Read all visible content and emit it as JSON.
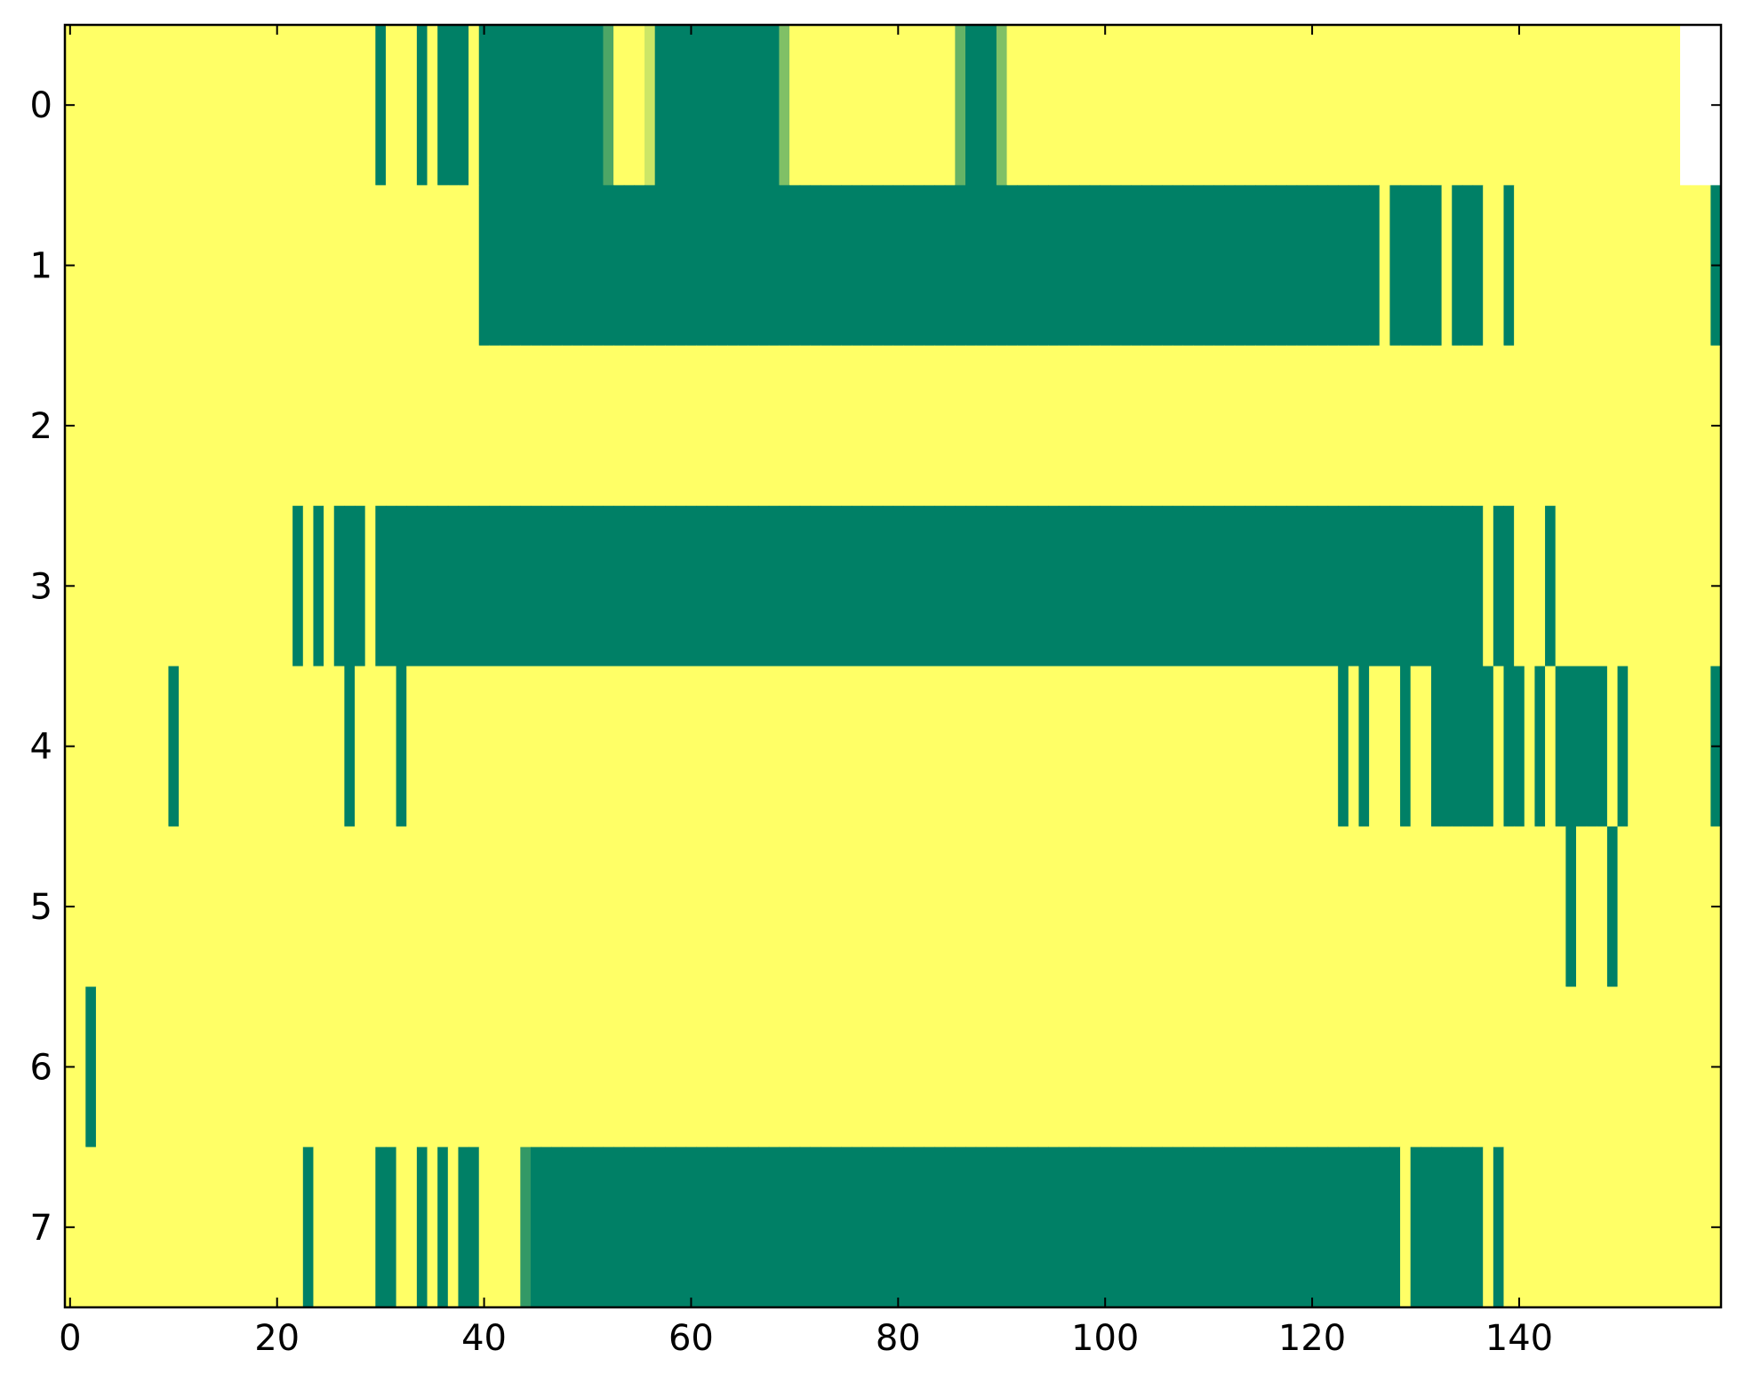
{
  "chart_data": {
    "type": "heatmap",
    "cmap": [
      "#008066",
      "#ffff66"
    ],
    "xlim": [
      -0.5,
      159.5
    ],
    "ylim": [
      7.5,
      -0.5
    ],
    "xticks": [
      0,
      20,
      40,
      60,
      80,
      100,
      120,
      140
    ],
    "yticks": [
      0,
      1,
      2,
      3,
      4,
      5,
      6,
      7
    ],
    "values": [
      [
        1,
        1,
        1,
        1,
        1,
        1,
        1,
        1,
        1,
        1,
        1,
        1,
        1,
        1,
        1,
        1,
        1,
        1,
        1,
        1,
        1,
        1,
        1,
        1,
        1,
        1,
        1,
        1,
        1,
        1,
        0,
        1,
        1,
        1,
        0,
        1,
        0,
        0,
        0,
        1,
        0,
        0,
        0,
        0,
        0,
        0,
        0,
        0,
        0,
        0,
        0,
        0,
        0.3,
        1,
        1,
        1,
        0.8,
        0,
        0,
        0,
        0,
        0,
        0,
        0,
        0,
        0,
        0,
        0,
        0,
        0.5,
        1,
        1,
        1,
        1,
        1,
        1,
        1,
        1,
        1,
        1,
        1,
        1,
        1,
        1,
        1,
        1,
        0.4,
        0,
        0,
        0,
        0.5,
        1,
        1,
        1,
        1,
        1,
        1,
        1,
        1,
        1,
        1,
        1,
        1,
        1,
        1,
        1,
        1,
        1,
        1,
        1,
        1,
        1,
        1,
        1,
        1,
        1,
        1,
        1,
        1,
        1,
        1,
        1,
        1,
        1,
        1,
        1,
        1,
        1,
        1,
        1,
        1,
        1,
        1,
        1,
        1,
        1,
        1,
        1,
        1,
        1,
        1,
        1,
        1,
        1,
        1,
        1,
        1,
        1,
        1,
        1,
        1,
        1,
        1,
        1,
        1,
        1
      ],
      [
        1,
        1,
        1,
        1,
        1,
        1,
        1,
        1,
        1,
        1,
        1,
        1,
        1,
        1,
        1,
        1,
        1,
        1,
        1,
        1,
        1,
        1,
        1,
        1,
        1,
        1,
        1,
        1,
        1,
        1,
        1,
        1,
        1,
        1,
        1,
        1,
        1,
        1,
        1,
        1,
        0,
        0,
        0,
        0,
        0,
        0,
        0,
        0,
        0,
        0,
        0,
        0,
        0,
        0,
        0,
        0,
        0,
        0,
        0,
        0,
        0,
        0,
        0,
        0,
        0,
        0,
        0,
        0,
        0,
        0,
        0,
        0,
        0,
        0,
        0,
        0,
        0,
        0,
        0,
        0,
        0,
        0,
        0,
        0,
        0,
        0,
        0,
        0,
        0,
        0,
        0,
        0,
        0,
        0,
        0,
        0,
        0,
        0,
        0,
        0,
        0,
        0,
        0,
        0,
        0,
        0,
        0,
        0,
        0,
        0,
        0,
        0,
        0,
        0,
        0,
        0,
        0,
        0,
        0,
        0,
        0,
        0,
        0,
        0,
        0,
        0,
        0,
        1,
        0,
        0,
        0,
        0,
        0,
        1,
        0,
        0,
        0,
        1,
        1,
        0,
        1,
        1,
        1,
        1,
        1,
        1,
        1,
        1,
        1,
        1,
        1,
        1,
        1,
        1,
        1,
        1,
        1,
        1,
        1,
        0
      ],
      [
        1,
        1,
        1,
        1,
        1,
        1,
        1,
        1,
        1,
        1,
        1,
        1,
        1,
        1,
        1,
        1,
        1,
        1,
        1,
        1,
        1,
        1,
        1,
        1,
        1,
        1,
        1,
        1,
        1,
        1,
        1,
        1,
        1,
        1,
        1,
        1,
        1,
        1,
        1,
        1,
        1,
        1,
        1,
        1,
        1,
        1,
        1,
        1,
        1,
        1,
        1,
        1,
        1,
        1,
        1,
        1,
        1,
        1,
        1,
        1,
        1,
        1,
        1,
        1,
        1,
        1,
        1,
        1,
        1,
        1,
        1,
        1,
        1,
        1,
        1,
        1,
        1,
        1,
        1,
        1,
        1,
        1,
        1,
        1,
        1,
        1,
        1,
        1,
        1,
        1,
        1,
        1,
        1,
        1,
        1,
        1,
        1,
        1,
        1,
        1,
        1,
        1,
        1,
        1,
        1,
        1,
        1,
        1,
        1,
        1,
        1,
        1,
        1,
        1,
        1,
        1,
        1,
        1,
        1,
        1,
        1,
        1,
        1,
        1,
        1,
        1,
        1,
        1,
        1,
        1,
        1,
        1,
        1,
        1,
        1,
        1,
        1,
        1,
        1,
        1,
        1,
        1,
        1,
        1,
        1,
        1,
        1,
        1,
        1,
        1,
        1,
        1,
        1,
        1,
        1,
        1,
        1,
        1,
        1,
        1
      ],
      [
        1,
        1,
        1,
        1,
        1,
        1,
        1,
        1,
        1,
        1,
        1,
        1,
        1,
        1,
        1,
        1,
        1,
        1,
        1,
        1,
        1,
        1,
        0,
        1,
        0,
        1,
        0,
        0,
        0,
        1,
        0,
        0,
        0,
        0,
        0,
        0,
        0,
        0,
        0,
        0,
        0,
        0,
        0,
        0,
        0,
        0,
        0,
        0,
        0,
        0,
        0,
        0,
        0,
        0,
        0,
        0,
        0,
        0,
        0,
        0,
        0,
        0,
        0,
        0,
        0,
        0,
        0,
        0,
        0,
        0,
        0,
        0,
        0,
        0,
        0,
        0,
        0,
        0,
        0,
        0,
        0,
        0,
        0,
        0,
        0,
        0,
        0,
        0,
        0,
        0,
        0,
        0,
        0,
        0,
        0,
        0,
        0,
        0,
        0,
        0,
        0,
        0,
        0,
        0,
        0,
        0,
        0,
        0,
        0,
        0,
        0,
        0,
        0,
        0,
        0,
        0,
        0,
        0,
        0,
        0,
        0,
        0,
        0,
        0,
        0,
        0,
        0,
        0,
        0,
        0,
        0,
        0,
        0,
        0,
        0,
        0,
        0,
        1,
        0,
        0,
        1,
        1,
        1,
        0,
        1,
        1,
        1,
        1,
        1,
        1,
        1,
        1,
        1,
        1,
        1,
        1,
        1,
        1,
        1,
        1
      ],
      [
        1,
        1,
        1,
        1,
        1,
        1,
        1,
        1,
        1,
        1,
        0,
        1,
        1,
        1,
        1,
        1,
        1,
        1,
        1,
        1,
        1,
        1,
        1,
        1,
        1,
        1,
        1,
        0,
        1,
        1,
        1,
        1,
        0,
        1,
        1,
        1,
        1,
        1,
        1,
        1,
        1,
        1,
        1,
        1,
        1,
        1,
        1,
        1,
        1,
        1,
        1,
        1,
        1,
        1,
        1,
        1,
        1,
        1,
        1,
        1,
        1,
        1,
        1,
        1,
        1,
        1,
        1,
        1,
        1,
        1,
        1,
        1,
        1,
        1,
        1,
        1,
        1,
        1,
        1,
        1,
        1,
        1,
        1,
        1,
        1,
        1,
        1,
        1,
        1,
        1,
        1,
        1,
        1,
        1,
        1,
        1,
        1,
        1,
        1,
        1,
        1,
        1,
        1,
        1,
        1,
        1,
        1,
        1,
        1,
        1,
        1,
        1,
        1,
        1,
        1,
        1,
        1,
        1,
        1,
        1,
        1,
        1,
        1,
        0,
        1,
        0,
        1,
        1,
        1,
        0,
        1,
        1,
        0,
        0,
        0,
        0,
        0,
        0,
        1,
        0,
        0,
        1,
        0,
        1,
        0,
        0,
        0,
        0,
        0,
        1,
        0,
        1,
        1,
        1,
        1,
        1,
        1,
        1,
        1,
        0
      ],
      [
        1,
        1,
        1,
        1,
        1,
        1,
        1,
        1,
        1,
        1,
        1,
        1,
        1,
        1,
        1,
        1,
        1,
        1,
        1,
        1,
        1,
        1,
        1,
        1,
        1,
        1,
        1,
        1,
        1,
        1,
        1,
        1,
        1,
        1,
        1,
        1,
        1,
        1,
        1,
        1,
        1,
        1,
        1,
        1,
        1,
        1,
        1,
        1,
        1,
        1,
        1,
        1,
        1,
        1,
        1,
        1,
        1,
        1,
        1,
        1,
        1,
        1,
        1,
        1,
        1,
        1,
        1,
        1,
        1,
        1,
        1,
        1,
        1,
        1,
        1,
        1,
        1,
        1,
        1,
        1,
        1,
        1,
        1,
        1,
        1,
        1,
        1,
        1,
        1,
        1,
        1,
        1,
        1,
        1,
        1,
        1,
        1,
        1,
        1,
        1,
        1,
        1,
        1,
        1,
        1,
        1,
        1,
        1,
        1,
        1,
        1,
        1,
        1,
        1,
        1,
        1,
        1,
        1,
        1,
        1,
        1,
        1,
        1,
        1,
        1,
        1,
        1,
        1,
        1,
        1,
        1,
        1,
        1,
        1,
        1,
        1,
        1,
        1,
        1,
        1,
        1,
        1,
        1,
        1,
        1,
        0,
        1,
        1,
        1,
        0,
        1,
        1,
        1,
        1,
        1,
        1,
        1,
        1,
        1,
        1
      ],
      [
        1,
        1,
        0,
        1,
        1,
        1,
        1,
        1,
        1,
        1,
        1,
        1,
        1,
        1,
        1,
        1,
        1,
        1,
        1,
        1,
        1,
        1,
        1,
        1,
        1,
        1,
        1,
        1,
        1,
        1,
        1,
        1,
        1,
        1,
        1,
        1,
        1,
        1,
        1,
        1,
        1,
        1,
        1,
        1,
        1,
        1,
        1,
        1,
        1,
        1,
        1,
        1,
        1,
        1,
        1,
        1,
        1,
        1,
        1,
        1,
        1,
        1,
        1,
        1,
        1,
        1,
        1,
        1,
        1,
        1,
        1,
        1,
        1,
        1,
        1,
        1,
        1,
        1,
        1,
        1,
        1,
        1,
        1,
        1,
        1,
        1,
        1,
        1,
        1,
        1,
        1,
        1,
        1,
        1,
        1,
        1,
        1,
        1,
        1,
        1,
        1,
        1,
        1,
        1,
        1,
        1,
        1,
        1,
        1,
        1,
        1,
        1,
        1,
        1,
        1,
        1,
        1,
        1,
        1,
        1,
        1,
        1,
        1,
        1,
        1,
        1,
        1,
        1,
        1,
        1,
        1,
        1,
        1,
        1,
        1,
        1,
        1,
        1,
        1,
        1,
        1,
        1,
        1,
        1,
        1,
        1,
        1,
        1,
        1,
        1,
        1,
        1,
        1,
        1,
        1,
        1,
        1,
        1,
        1,
        1
      ],
      [
        1,
        1,
        1,
        1,
        1,
        1,
        1,
        1,
        1,
        1,
        1,
        1,
        1,
        1,
        1,
        1,
        1,
        1,
        1,
        1,
        1,
        1,
        1,
        0,
        1,
        1,
        1,
        1,
        1,
        1,
        0,
        0,
        1,
        1,
        0,
        1,
        0,
        1,
        0,
        0,
        1,
        1,
        1,
        1,
        0.2,
        0,
        0,
        0,
        0,
        0,
        0,
        0,
        0,
        0,
        0,
        0,
        0,
        0,
        0,
        0,
        0,
        0,
        0,
        0,
        0,
        0,
        0,
        0,
        0,
        0,
        0,
        0,
        0,
        0,
        0,
        0,
        0,
        0,
        0,
        0,
        0,
        0,
        0,
        0,
        0,
        0,
        0,
        0,
        0,
        0,
        0,
        0,
        0,
        0,
        0,
        0,
        0,
        0,
        0,
        0,
        0,
        0,
        0,
        0,
        0,
        0,
        0,
        0,
        0,
        0,
        0,
        0,
        0,
        0,
        0,
        0,
        0,
        0,
        0,
        0,
        0,
        0,
        0,
        0,
        0,
        0,
        0,
        0,
        0,
        1,
        0,
        0,
        0,
        0,
        0,
        0,
        0,
        1,
        0,
        1,
        1,
        1,
        1,
        1,
        1,
        1,
        1,
        1,
        1,
        1,
        1,
        1,
        1,
        1,
        1,
        1,
        1,
        1,
        1,
        1
      ]
    ]
  }
}
